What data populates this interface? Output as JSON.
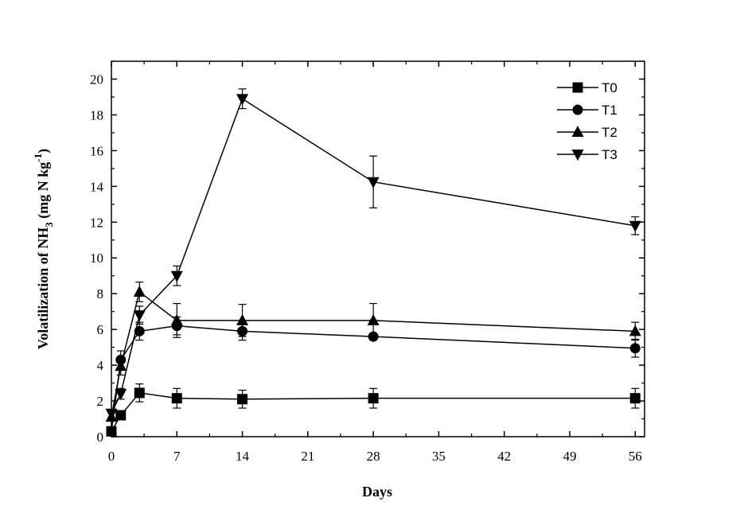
{
  "chart_data": {
    "type": "line",
    "title": "",
    "xlabel": "Days",
    "ylabel": {
      "prefix": "Volatilization of  NH",
      "subscript": "3",
      "unit_open": " (mg N kg",
      "superscript": "-1",
      "unit_close": ")"
    },
    "xlim": [
      0,
      57
    ],
    "ylim": [
      0,
      21
    ],
    "xticks": [
      0,
      7,
      14,
      21,
      28,
      35,
      42,
      49,
      56
    ],
    "yticks": [
      0,
      2,
      4,
      6,
      8,
      10,
      12,
      14,
      16,
      18,
      20
    ],
    "x": [
      0,
      1,
      3,
      7,
      14,
      28,
      56
    ],
    "legend_position": "top-right",
    "series": [
      {
        "name": "T0",
        "marker": "square",
        "values": [
          0.3,
          1.2,
          2.45,
          2.15,
          2.1,
          2.15,
          2.15
        ],
        "errors": [
          0.0,
          0.2,
          0.5,
          0.55,
          0.5,
          0.55,
          0.55
        ]
      },
      {
        "name": "T1",
        "marker": "circle",
        "values": [
          0.3,
          4.3,
          5.9,
          6.2,
          5.9,
          5.6,
          4.95
        ],
        "errors": [
          0.0,
          0.5,
          0.5,
          0.5,
          0.5,
          0.0,
          0.5
        ]
      },
      {
        "name": "T2",
        "marker": "triangle-up",
        "values": [
          1.1,
          3.95,
          8.1,
          6.5,
          6.5,
          6.5,
          5.9
        ],
        "errors": [
          0.0,
          0.5,
          0.55,
          0.95,
          0.9,
          0.95,
          0.5
        ]
      },
      {
        "name": "T3",
        "marker": "triangle-down",
        "values": [
          1.3,
          2.4,
          6.8,
          9.0,
          18.9,
          14.25,
          11.8
        ],
        "errors": [
          0.0,
          0.3,
          0.5,
          0.55,
          0.55,
          1.45,
          0.5
        ]
      }
    ]
  }
}
